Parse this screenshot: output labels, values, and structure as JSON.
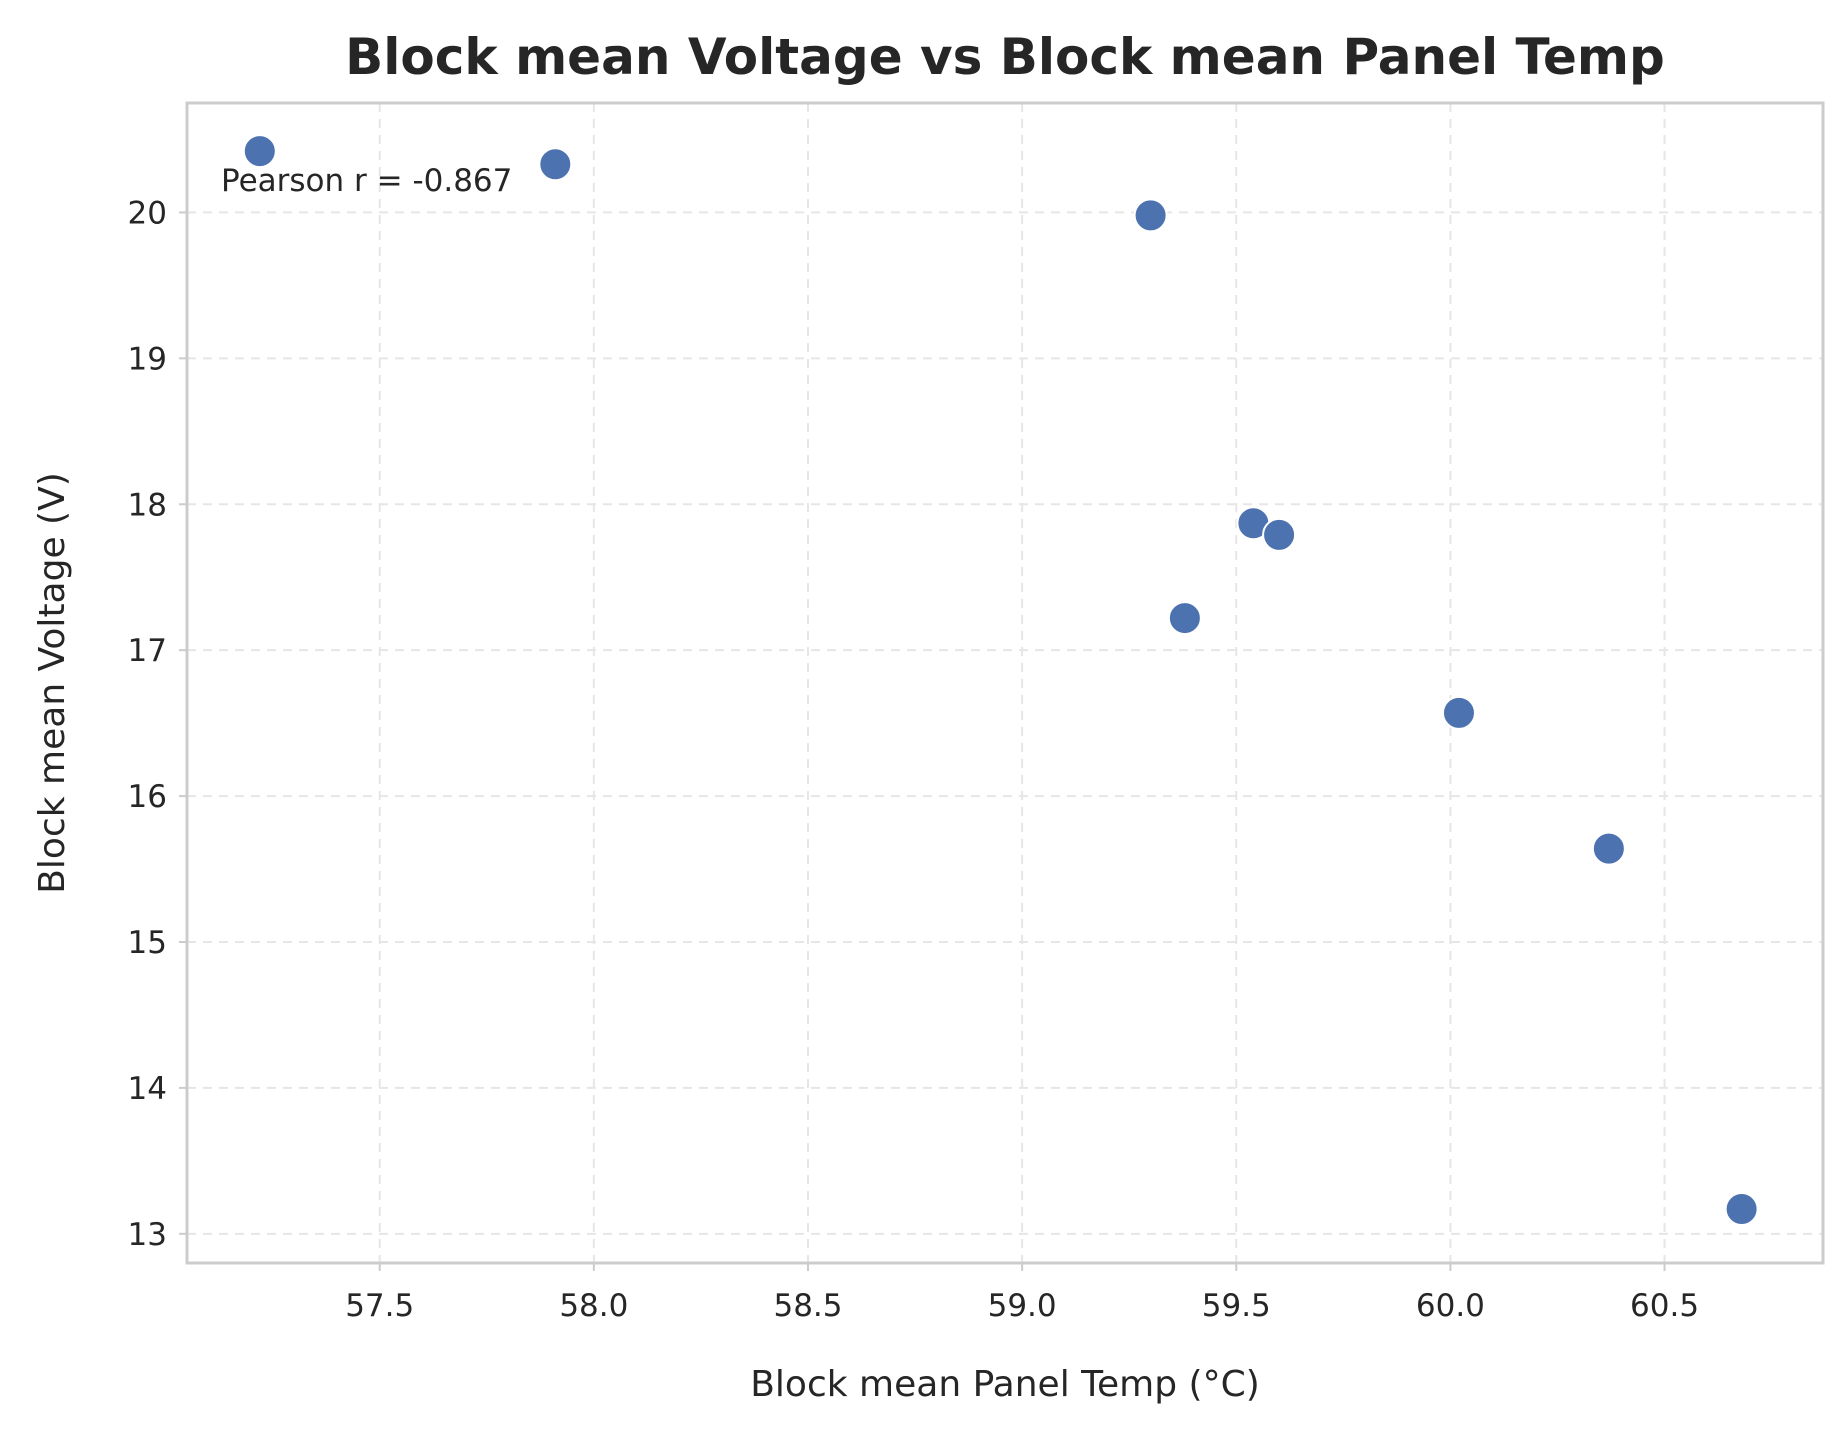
{
  "chart_data": {
    "type": "scatter",
    "title": "Block mean Voltage vs Block mean Panel Temp",
    "xlabel": "Block mean Panel Temp (°C)",
    "ylabel": "Block mean Voltage (V)",
    "xlim": [
      57.05,
      60.87
    ],
    "ylim": [
      12.8,
      20.75
    ],
    "xticks": [
      57.5,
      58.0,
      58.5,
      59.0,
      59.5,
      60.0,
      60.5
    ],
    "xtick_labels": [
      "57.5",
      "58.0",
      "58.5",
      "59.0",
      "59.5",
      "60.0",
      "60.5"
    ],
    "yticks": [
      13,
      14,
      15,
      16,
      17,
      18,
      19,
      20
    ],
    "ytick_labels": [
      "13",
      "14",
      "15",
      "16",
      "17",
      "18",
      "19",
      "20"
    ],
    "grid": true,
    "annotation": "Pearson r = -0.867",
    "point_color": "#4c72b0",
    "points": [
      {
        "x": 57.22,
        "y": 20.42
      },
      {
        "x": 57.91,
        "y": 20.33
      },
      {
        "x": 59.3,
        "y": 19.98
      },
      {
        "x": 59.38,
        "y": 17.22
      },
      {
        "x": 59.54,
        "y": 17.87
      },
      {
        "x": 59.6,
        "y": 17.79
      },
      {
        "x": 60.02,
        "y": 16.57
      },
      {
        "x": 60.37,
        "y": 15.64
      },
      {
        "x": 60.68,
        "y": 13.17
      }
    ]
  }
}
